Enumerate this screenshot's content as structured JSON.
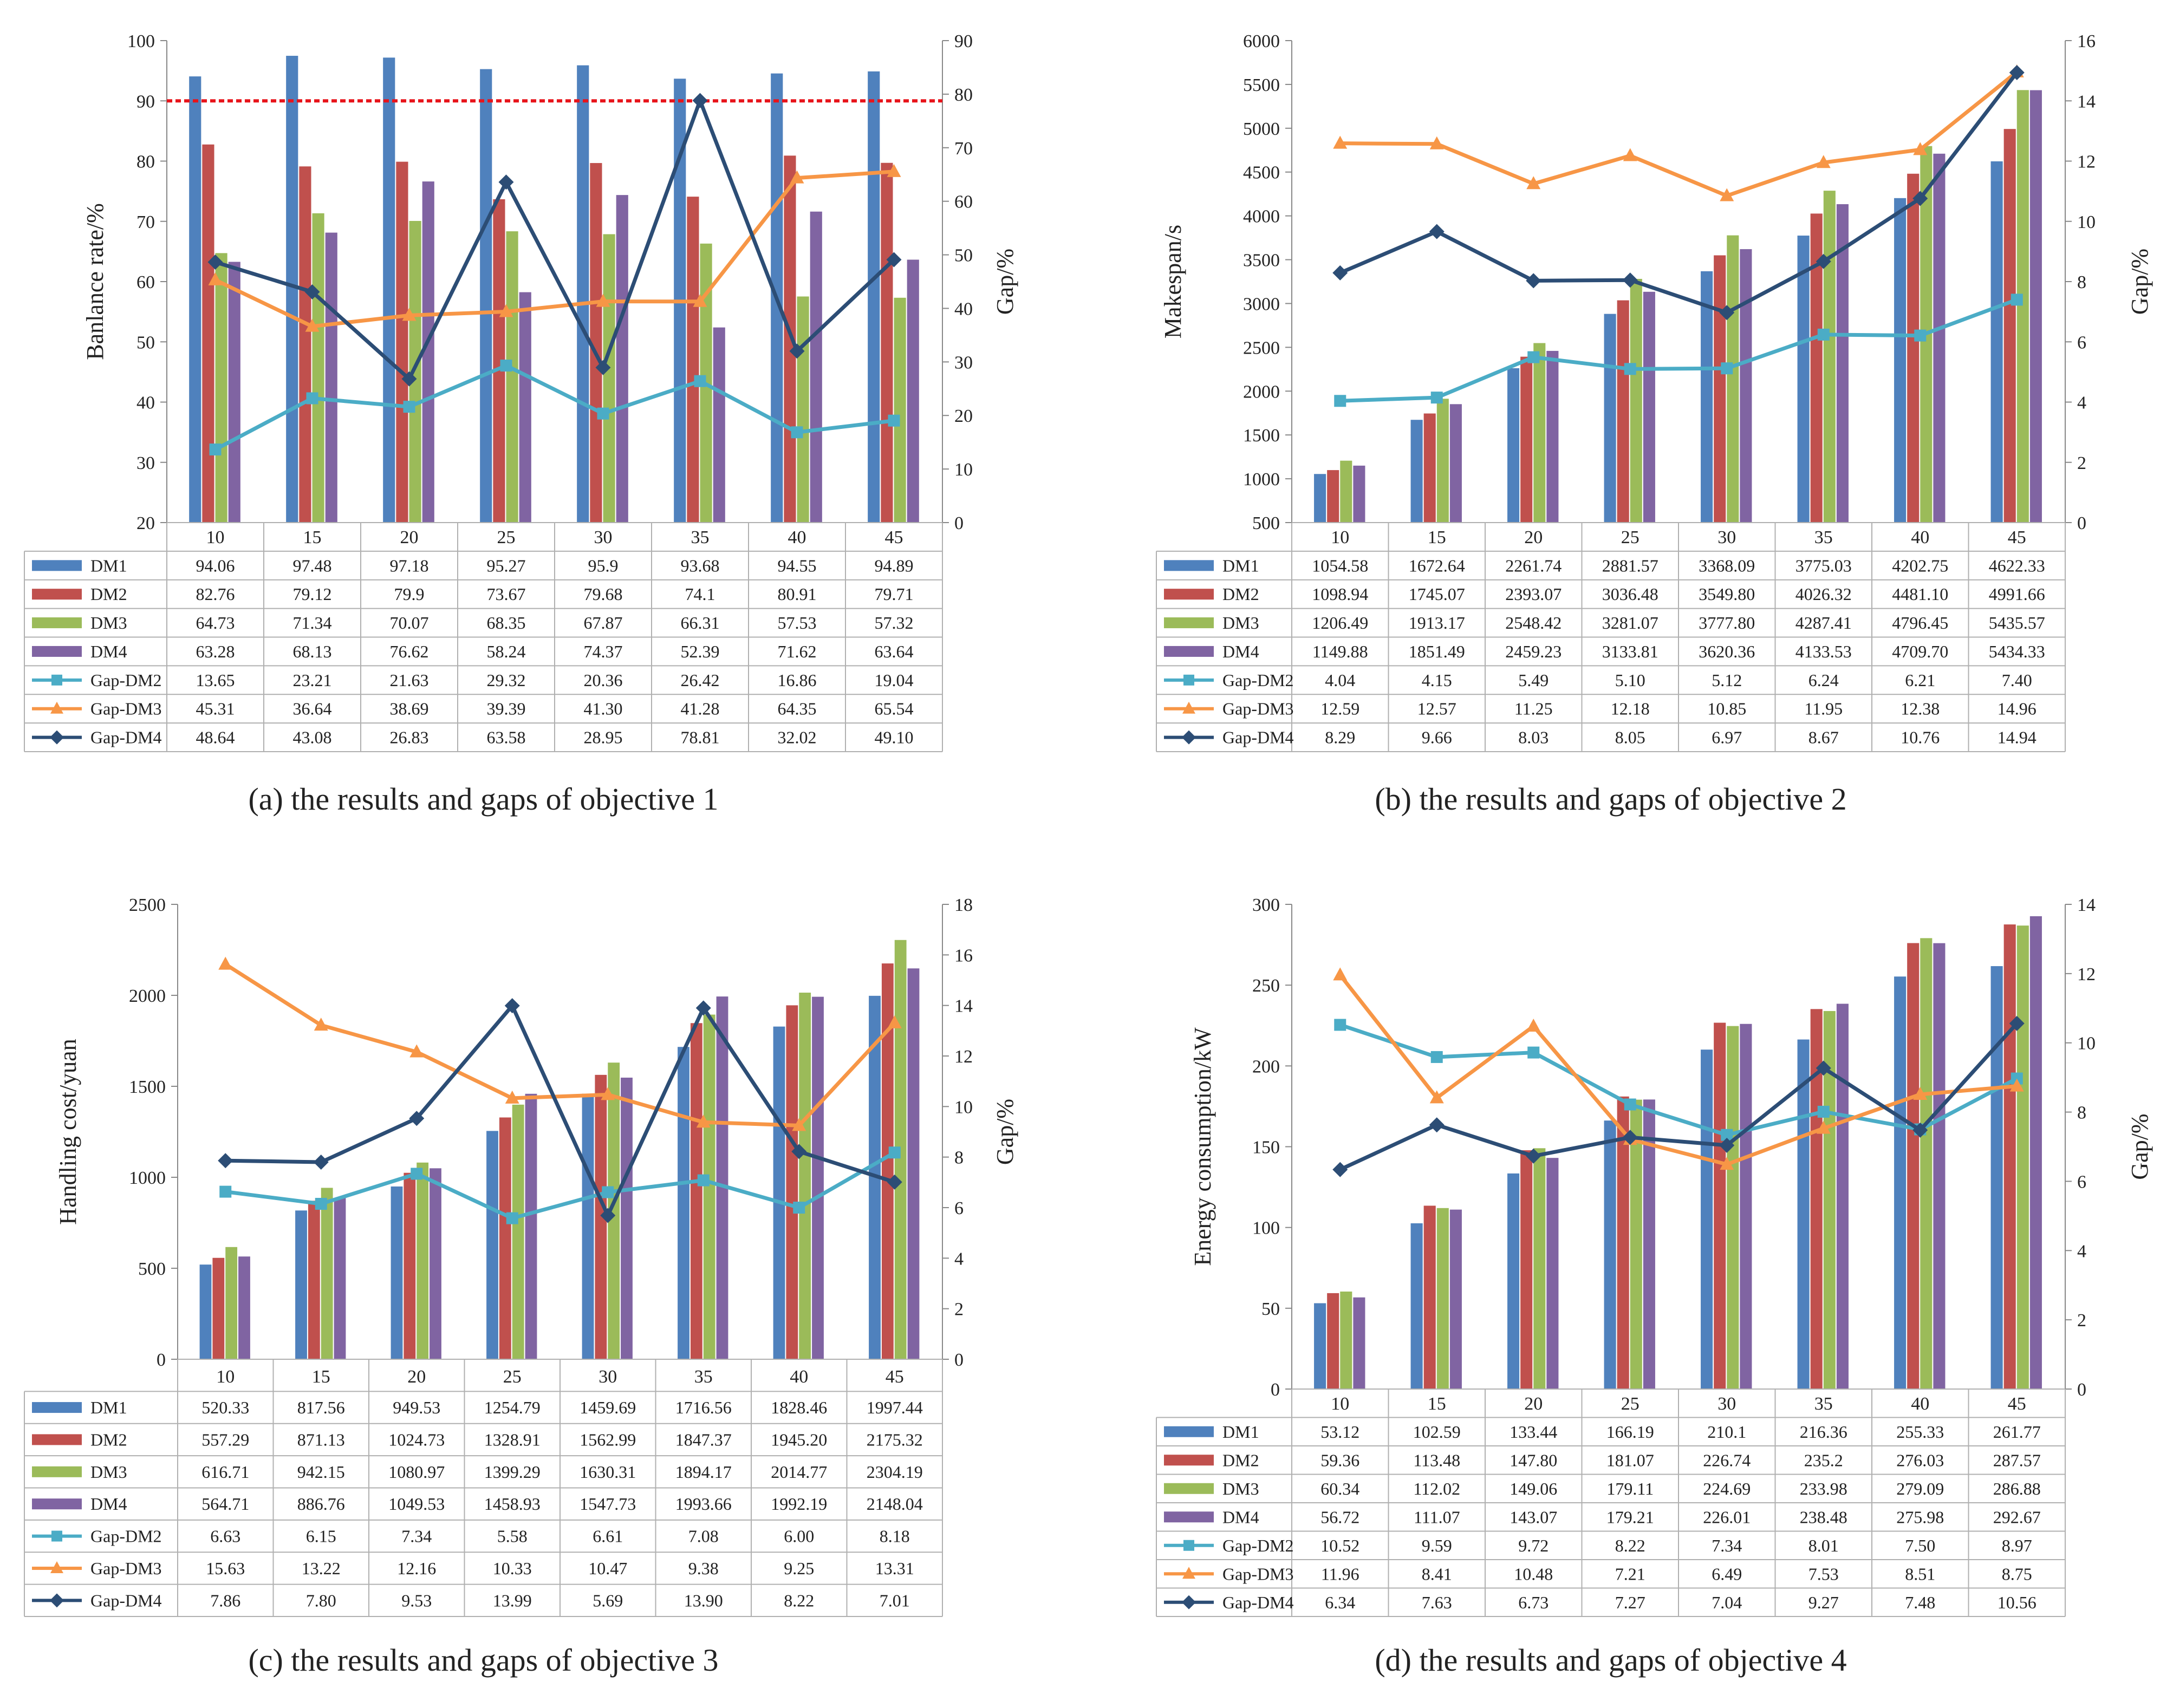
{
  "figure": {
    "series_names": [
      "DM1",
      "DM2",
      "DM3",
      "DM4",
      "Gap-DM2",
      "Gap-DM3",
      "Gap-DM4"
    ],
    "colors": {
      "DM1": "#4F81BD",
      "DM2": "#C0504D",
      "DM3": "#9BBB59",
      "DM4": "#8064A2",
      "Gap-DM2": "#4BACC6",
      "Gap-DM3": "#F79646",
      "Gap-DM4": "#2C4D75",
      "threshold": "#E8141B"
    }
  },
  "chart_data": [
    {
      "type": "bar",
      "caption": "(a)  the results and gaps of objective 1",
      "categories": [
        "10",
        "15",
        "20",
        "25",
        "30",
        "35",
        "40",
        "45"
      ],
      "ylabel": "Banlance rate/%",
      "y2label": "Gap/%",
      "ylim": [
        20,
        100
      ],
      "yticks": [
        20,
        30,
        40,
        50,
        60,
        70,
        80,
        90,
        100
      ],
      "y2lim": [
        0,
        90
      ],
      "y2ticks": [
        0,
        10,
        20,
        30,
        40,
        50,
        60,
        70,
        80,
        90
      ],
      "threshold": 90,
      "series": [
        {
          "name": "DM1",
          "values": [
            94.06,
            97.48,
            97.18,
            95.27,
            95.9,
            93.68,
            94.55,
            94.89
          ]
        },
        {
          "name": "DM2",
          "values": [
            82.76,
            79.12,
            79.9,
            73.67,
            79.68,
            74.1,
            80.91,
            79.71
          ]
        },
        {
          "name": "DM3",
          "values": [
            64.73,
            71.34,
            70.07,
            68.35,
            67.87,
            66.31,
            57.53,
            57.32
          ]
        },
        {
          "name": "DM4",
          "values": [
            63.28,
            68.13,
            76.62,
            58.24,
            74.37,
            52.39,
            71.62,
            63.64
          ]
        }
      ],
      "gap_series": [
        {
          "name": "Gap-DM2",
          "values": [
            13.65,
            23.21,
            21.63,
            29.32,
            20.36,
            26.42,
            16.86,
            19.04
          ]
        },
        {
          "name": "Gap-DM3",
          "values": [
            45.31,
            36.64,
            38.69,
            39.39,
            41.3,
            41.28,
            64.35,
            65.54
          ]
        },
        {
          "name": "Gap-DM4",
          "values": [
            48.64,
            43.08,
            26.83,
            63.58,
            28.95,
            78.81,
            32.02,
            49.1
          ]
        }
      ],
      "table_rows": [
        [
          "94.06",
          "97.48",
          "97.18",
          "95.27",
          "95.9",
          "93.68",
          "94.55",
          "94.89"
        ],
        [
          "82.76",
          "79.12",
          "79.9",
          "73.67",
          "79.68",
          "74.1",
          "80.91",
          "79.71"
        ],
        [
          "64.73",
          "71.34",
          "70.07",
          "68.35",
          "67.87",
          "66.31",
          "57.53",
          "57.32"
        ],
        [
          "63.28",
          "68.13",
          "76.62",
          "58.24",
          "74.37",
          "52.39",
          "71.62",
          "63.64"
        ],
        [
          "13.65",
          "23.21",
          "21.63",
          "29.32",
          "20.36",
          "26.42",
          "16.86",
          "19.04"
        ],
        [
          "45.31",
          "36.64",
          "38.69",
          "39.39",
          "41.30",
          "41.28",
          "64.35",
          "65.54"
        ],
        [
          "48.64",
          "43.08",
          "26.83",
          "63.58",
          "28.95",
          "78.81",
          "32.02",
          "49.10"
        ]
      ]
    },
    {
      "type": "bar",
      "caption": "(b)  the results and gaps of objective 2",
      "categories": [
        "10",
        "15",
        "20",
        "25",
        "30",
        "35",
        "40",
        "45"
      ],
      "ylabel": "Makespan/s",
      "y2label": "Gap/%",
      "ylim": [
        500,
        6000
      ],
      "yticks": [
        500,
        1000,
        1500,
        2000,
        2500,
        3000,
        3500,
        4000,
        4500,
        5000,
        5500,
        6000
      ],
      "y2lim": [
        0,
        16
      ],
      "y2ticks": [
        0,
        2,
        4,
        6,
        8,
        10,
        12,
        14,
        16
      ],
      "series": [
        {
          "name": "DM1",
          "values": [
            1054.58,
            1672.64,
            2261.74,
            2881.57,
            3368.09,
            3775.03,
            4202.75,
            4622.33
          ]
        },
        {
          "name": "DM2",
          "values": [
            1098.94,
            1745.07,
            2393.07,
            3036.48,
            3549.8,
            4026.32,
            4481.1,
            4991.66
          ]
        },
        {
          "name": "DM3",
          "values": [
            1206.49,
            1913.17,
            2548.42,
            3281.07,
            3777.8,
            4287.41,
            4796.45,
            5435.57
          ]
        },
        {
          "name": "DM4",
          "values": [
            1149.88,
            1851.49,
            2459.23,
            3133.81,
            3620.36,
            4133.53,
            4709.7,
            5434.33
          ]
        }
      ],
      "gap_series": [
        {
          "name": "Gap-DM2",
          "values": [
            4.04,
            4.15,
            5.49,
            5.1,
            5.12,
            6.24,
            6.21,
            7.4
          ]
        },
        {
          "name": "Gap-DM3",
          "values": [
            12.59,
            12.57,
            11.25,
            12.18,
            10.85,
            11.95,
            12.38,
            14.96
          ]
        },
        {
          "name": "Gap-DM4",
          "values": [
            8.29,
            9.66,
            8.03,
            8.05,
            6.97,
            8.67,
            10.76,
            14.94
          ]
        }
      ],
      "table_rows": [
        [
          "1054.58",
          "1672.64",
          "2261.74",
          "2881.57",
          "3368.09",
          "3775.03",
          "4202.75",
          "4622.33"
        ],
        [
          "1098.94",
          "1745.07",
          "2393.07",
          "3036.48",
          "3549.80",
          "4026.32",
          "4481.10",
          "4991.66"
        ],
        [
          "1206.49",
          "1913.17",
          "2548.42",
          "3281.07",
          "3777.80",
          "4287.41",
          "4796.45",
          "5435.57"
        ],
        [
          "1149.88",
          "1851.49",
          "2459.23",
          "3133.81",
          "3620.36",
          "4133.53",
          "4709.70",
          "5434.33"
        ],
        [
          "4.04",
          "4.15",
          "5.49",
          "5.10",
          "5.12",
          "6.24",
          "6.21",
          "7.40"
        ],
        [
          "12.59",
          "12.57",
          "11.25",
          "12.18",
          "10.85",
          "11.95",
          "12.38",
          "14.96"
        ],
        [
          "8.29",
          "9.66",
          "8.03",
          "8.05",
          "6.97",
          "8.67",
          "10.76",
          "14.94"
        ]
      ]
    },
    {
      "type": "bar",
      "caption": "(c)  the results and gaps of objective 3",
      "categories": [
        "10",
        "15",
        "20",
        "25",
        "30",
        "35",
        "40",
        "45"
      ],
      "ylabel": "Handling cost/yuan",
      "y2label": "Gap/%",
      "ylim": [
        0,
        2500
      ],
      "yticks": [
        0,
        500,
        1000,
        1500,
        2000,
        2500
      ],
      "y2lim": [
        0,
        18
      ],
      "y2ticks": [
        0,
        2,
        4,
        6,
        8,
        10,
        12,
        14,
        16,
        18
      ],
      "series": [
        {
          "name": "DM1",
          "values": [
            520.33,
            817.56,
            949.53,
            1254.79,
            1459.69,
            1716.56,
            1828.46,
            1997.44
          ]
        },
        {
          "name": "DM2",
          "values": [
            557.29,
            871.13,
            1024.73,
            1328.91,
            1562.99,
            1847.37,
            1945.2,
            2175.32
          ]
        },
        {
          "name": "DM3",
          "values": [
            616.71,
            942.15,
            1080.97,
            1399.29,
            1630.31,
            1894.17,
            2014.77,
            2304.19
          ]
        },
        {
          "name": "DM4",
          "values": [
            564.71,
            886.76,
            1049.53,
            1458.93,
            1547.73,
            1993.66,
            1992.19,
            2148.04
          ]
        }
      ],
      "gap_series": [
        {
          "name": "Gap-DM2",
          "values": [
            6.63,
            6.15,
            7.34,
            5.58,
            6.61,
            7.08,
            6.0,
            8.18
          ]
        },
        {
          "name": "Gap-DM3",
          "values": [
            15.63,
            13.22,
            12.16,
            10.33,
            10.47,
            9.38,
            9.25,
            13.31
          ]
        },
        {
          "name": "Gap-DM4",
          "values": [
            7.86,
            7.8,
            9.53,
            13.99,
            5.69,
            13.9,
            8.22,
            7.01
          ]
        }
      ],
      "table_rows": [
        [
          "520.33",
          "817.56",
          "949.53",
          "1254.79",
          "1459.69",
          "1716.56",
          "1828.46",
          "1997.44"
        ],
        [
          "557.29",
          "871.13",
          "1024.73",
          "1328.91",
          "1562.99",
          "1847.37",
          "1945.20",
          "2175.32"
        ],
        [
          "616.71",
          "942.15",
          "1080.97",
          "1399.29",
          "1630.31",
          "1894.17",
          "2014.77",
          "2304.19"
        ],
        [
          "564.71",
          "886.76",
          "1049.53",
          "1458.93",
          "1547.73",
          "1993.66",
          "1992.19",
          "2148.04"
        ],
        [
          "6.63",
          "6.15",
          "7.34",
          "5.58",
          "6.61",
          "7.08",
          "6.00",
          "8.18"
        ],
        [
          "15.63",
          "13.22",
          "12.16",
          "10.33",
          "10.47",
          "9.38",
          "9.25",
          "13.31"
        ],
        [
          "7.86",
          "7.80",
          "9.53",
          "13.99",
          "5.69",
          "13.90",
          "8.22",
          "7.01"
        ]
      ]
    },
    {
      "type": "bar",
      "caption": "(d)  the results and gaps of objective 4",
      "categories": [
        "10",
        "15",
        "20",
        "25",
        "30",
        "35",
        "40",
        "45"
      ],
      "ylabel": "Energy consumption/kW",
      "y2label": "Gap/%",
      "ylim": [
        0,
        300
      ],
      "yticks": [
        0,
        50,
        100,
        150,
        200,
        250,
        300
      ],
      "y2lim": [
        0,
        14
      ],
      "y2ticks": [
        0,
        2,
        4,
        6,
        8,
        10,
        12,
        14
      ],
      "series": [
        {
          "name": "DM1",
          "values": [
            53.12,
            102.59,
            133.44,
            166.19,
            210.1,
            216.36,
            255.33,
            261.77
          ]
        },
        {
          "name": "DM2",
          "values": [
            59.36,
            113.48,
            147.8,
            181.07,
            226.74,
            235.2,
            276.03,
            287.57
          ]
        },
        {
          "name": "DM3",
          "values": [
            60.34,
            112.02,
            149.06,
            179.11,
            224.69,
            233.98,
            279.09,
            286.88
          ]
        },
        {
          "name": "DM4",
          "values": [
            56.72,
            111.07,
            143.07,
            179.21,
            226.01,
            238.48,
            275.98,
            292.67
          ]
        }
      ],
      "gap_series": [
        {
          "name": "Gap-DM2",
          "values": [
            10.52,
            9.59,
            9.72,
            8.22,
            7.34,
            8.01,
            7.5,
            8.97
          ]
        },
        {
          "name": "Gap-DM3",
          "values": [
            11.96,
            8.41,
            10.48,
            7.21,
            6.49,
            7.53,
            8.51,
            8.75
          ]
        },
        {
          "name": "Gap-DM4",
          "values": [
            6.34,
            7.63,
            6.73,
            7.27,
            7.04,
            9.27,
            7.48,
            10.56
          ]
        }
      ],
      "table_rows": [
        [
          "53.12",
          "102.59",
          "133.44",
          "166.19",
          "210.1",
          "216.36",
          "255.33",
          "261.77"
        ],
        [
          "59.36",
          "113.48",
          "147.80",
          "181.07",
          "226.74",
          "235.2",
          "276.03",
          "287.57"
        ],
        [
          "60.34",
          "112.02",
          "149.06",
          "179.11",
          "224.69",
          "233.98",
          "279.09",
          "286.88"
        ],
        [
          "56.72",
          "111.07",
          "143.07",
          "179.21",
          "226.01",
          "238.48",
          "275.98",
          "292.67"
        ],
        [
          "10.52",
          "9.59",
          "9.72",
          "8.22",
          "7.34",
          "8.01",
          "7.50",
          "8.97"
        ],
        [
          "11.96",
          "8.41",
          "10.48",
          "7.21",
          "6.49",
          "7.53",
          "8.51",
          "8.75"
        ],
        [
          "6.34",
          "7.63",
          "6.73",
          "7.27",
          "7.04",
          "9.27",
          "7.48",
          "10.56"
        ]
      ]
    }
  ]
}
